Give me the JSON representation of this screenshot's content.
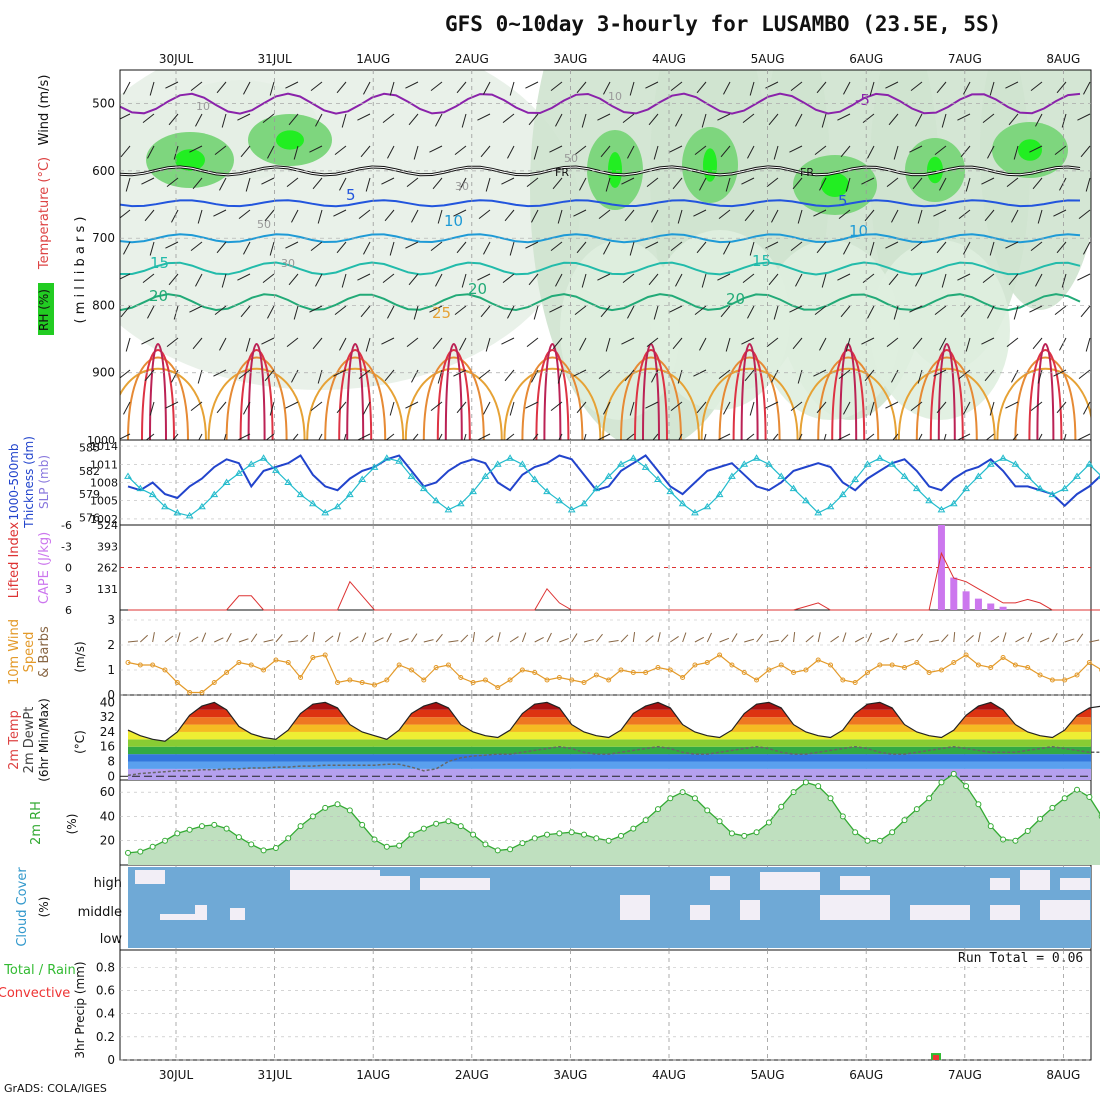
{
  "title": "GFS 0~10day 3-hourly for LUSAMBO (23.5E, 5S)",
  "credit": "GrADS: COLA/IGES",
  "run_total": "Run Total = 0.06",
  "dates": [
    "30JUL",
    "31JUL",
    "1AUG",
    "2AUG",
    "3AUG",
    "4AUG",
    "5AUG",
    "6AUG",
    "7AUG",
    "8AUG"
  ],
  "colors": {
    "rh_green": "#22cc22",
    "temp_cool": "#2255dd",
    "temp_warm": "#dd7700",
    "thick": "#2244cc",
    "slp": "#22bbcc",
    "li": "#dd3333",
    "cape": "#cc77ee",
    "wind": "#e39a2a",
    "dewpt": "#666666",
    "rh2": "#33aa33",
    "cloud": "#6fa9d6",
    "precip": "#33bb33"
  },
  "panels": {
    "upper": {
      "label_rh": "RH (%)",
      "label_temp": "Temperature (°C)",
      "label_wind": "Wind (m/s)",
      "label_p": "( m i l l i b a r s )"
    },
    "thickness": {
      "label_a": "1000-500mb",
      "label_b": "Thickness (dm)",
      "label_slp": "SLP (mb)"
    },
    "cape": {
      "label_li": "Lifted Index",
      "label_cape": "CAPE (J/kg)"
    },
    "wind10": {
      "label_a": "10m Wind",
      "label_b": "Speed",
      "label_c": "& Barbs",
      "label_unit": "(m/s)"
    },
    "temp2m": {
      "label_a": "2m Temp",
      "label_b": "2m DewPt",
      "label_c": "(6hr Min/Max)",
      "label_unit": "(°C)"
    },
    "rh2m": {
      "label": "2m RH",
      "label_unit": "(%)"
    },
    "cloud": {
      "label": "Cloud Cover",
      "label_unit": "(%)",
      "levels": [
        "high",
        "middle",
        "low"
      ]
    },
    "precip": {
      "label_a": "Total / Rain",
      "label_b": "Convective",
      "label_c": "3hr Precip (mm)"
    }
  },
  "chart_data": [
    {
      "type": "heatmap",
      "panel": "vertical-cross-section",
      "ylabel": "millibars",
      "y_ticks": [
        500,
        600,
        700,
        800,
        900,
        1000
      ],
      "ylim": [
        450,
        1000
      ],
      "contour_labels_temp": [
        "-5",
        "0",
        "FR",
        "5",
        "10",
        "15",
        "20",
        "25"
      ],
      "contour_labels_rh": [
        "10",
        "30",
        "50"
      ],
      "freezing_level_mb": 600
    },
    {
      "type": "line",
      "panel": "thickness-slp",
      "thickness_ticks": [
        576,
        579,
        582,
        585
      ],
      "slp_ticks": [
        1002,
        1005,
        1008,
        1011,
        1014
      ],
      "series": [
        {
          "name": "1000-500mb Thickness",
          "values": [
            580,
            579.5,
            580.5,
            579,
            578.5,
            580,
            581,
            582.5,
            583.5,
            583,
            580,
            582,
            582.5,
            583,
            584,
            581.5,
            580,
            579.5,
            581,
            582,
            582.5,
            583.5,
            584,
            582,
            580,
            580.5,
            582,
            583,
            583.5,
            583,
            580.5,
            579.5,
            581.5,
            582.5,
            583,
            584,
            583.5,
            581.5,
            579.5,
            580,
            582,
            583,
            584,
            582,
            580,
            579,
            580.5,
            582,
            582.5,
            583,
            581.5,
            580,
            579.5,
            580.5,
            582,
            582.5,
            583,
            582.5,
            580.5,
            579.5,
            581,
            582,
            583,
            583.5,
            582,
            580,
            579.5,
            581,
            582,
            582.5,
            583.5,
            582,
            580,
            580,
            579.5,
            579,
            577.5,
            579,
            580,
            581.5
          ]
        },
        {
          "name": "SLP",
          "values": [
            1009,
            1007,
            1006,
            1004,
            1003,
            1002.5,
            1004,
            1006,
            1008,
            1009.5,
            1011,
            1012,
            1010,
            1008,
            1006,
            1004.5,
            1003,
            1004,
            1006,
            1008.5,
            1010.5,
            1012,
            1011.5,
            1009,
            1007,
            1005,
            1003.5,
            1004.5,
            1006.5,
            1009,
            1011,
            1012,
            1011,
            1008.5,
            1006.5,
            1005,
            1003.5,
            1004.5,
            1007,
            1009,
            1011,
            1012,
            1010.5,
            1008.5,
            1006.5,
            1004.5,
            1003,
            1004,
            1006,
            1009,
            1011,
            1012,
            1011,
            1009,
            1007,
            1005,
            1003,
            1004,
            1006,
            1008.5,
            1011,
            1012,
            1011,
            1009,
            1007,
            1005,
            1003.5,
            1004.5,
            1007,
            1009,
            1011,
            1012,
            1011,
            1009,
            1007,
            1006,
            1007,
            1009,
            1011,
            1009,
            1006
          ]
        }
      ]
    },
    {
      "type": "bar",
      "panel": "cape-lifted-index",
      "cape_ticks": [
        131,
        262,
        393,
        524
      ],
      "li_ticks": [
        -6,
        -3,
        0,
        3,
        6
      ],
      "series": [
        {
          "name": "CAPE",
          "values": [
            0,
            0,
            0,
            0,
            0,
            0,
            0,
            0,
            0,
            0,
            0,
            0,
            0,
            0,
            0,
            0,
            0,
            0,
            0,
            0,
            0,
            0,
            0,
            0,
            0,
            0,
            0,
            0,
            0,
            0,
            0,
            0,
            0,
            0,
            0,
            0,
            0,
            0,
            0,
            0,
            0,
            0,
            0,
            0,
            0,
            0,
            0,
            0,
            0,
            0,
            0,
            0,
            0,
            0,
            0,
            0,
            0,
            0,
            0,
            0,
            0,
            0,
            0,
            0,
            0,
            0,
            524,
            200,
            115,
            70,
            40,
            20,
            0,
            0,
            0,
            0,
            0,
            0,
            0,
            0,
            0,
            0
          ]
        },
        {
          "name": "Lifted Index",
          "values": [
            6,
            6,
            6,
            6,
            6,
            6,
            6,
            6,
            6,
            4,
            4,
            6,
            6,
            6,
            6,
            6,
            6,
            6,
            2,
            4,
            6,
            6,
            6,
            6,
            6,
            6,
            6,
            6,
            6,
            6,
            6,
            6,
            6,
            6,
            3,
            5,
            6,
            6,
            6,
            6,
            6,
            6,
            6,
            6,
            6,
            6,
            6,
            6,
            6,
            6,
            6,
            6,
            6,
            6,
            6,
            5.5,
            5,
            6,
            6,
            6,
            6,
            6,
            6,
            6,
            6,
            6,
            -2,
            1.5,
            2,
            3,
            4,
            5,
            5,
            4.5,
            5,
            6,
            6,
            6,
            6,
            6,
            6
          ]
        }
      ]
    },
    {
      "type": "line",
      "panel": "10m-wind",
      "y_ticks": [
        0,
        1,
        2,
        3
      ],
      "series": [
        {
          "name": "10m Wind Speed",
          "values": [
            1.3,
            1.2,
            1.2,
            1.0,
            0.5,
            0.1,
            0.1,
            0.5,
            0.9,
            1.3,
            1.2,
            1.0,
            1.4,
            1.3,
            0.7,
            1.5,
            1.6,
            0.5,
            0.6,
            0.5,
            0.4,
            0.6,
            1.2,
            1.0,
            0.6,
            1.1,
            1.2,
            0.7,
            0.5,
            0.6,
            0.3,
            0.6,
            1.0,
            0.9,
            0.6,
            0.7,
            0.6,
            0.5,
            0.8,
            0.6,
            1.0,
            0.9,
            0.9,
            1.1,
            1.0,
            0.7,
            1.2,
            1.3,
            1.6,
            1.2,
            0.9,
            0.6,
            1.0,
            1.2,
            0.9,
            1.0,
            1.4,
            1.2,
            0.6,
            0.5,
            0.9,
            1.2,
            1.2,
            1.1,
            1.3,
            0.9,
            1.0,
            1.3,
            1.6,
            1.2,
            1.1,
            1.5,
            1.2,
            1.1,
            0.8,
            0.6,
            0.6,
            0.8,
            1.3,
            1.0,
            0.1
          ]
        }
      ]
    },
    {
      "type": "area",
      "panel": "2m-temp-dewpt",
      "y_ticks": [
        0,
        8,
        16,
        24,
        32,
        40
      ],
      "series": [
        {
          "name": "2m Temp",
          "values": [
            25,
            22,
            20,
            19,
            24,
            33,
            38,
            40,
            36,
            27,
            23,
            21,
            20,
            25,
            34,
            39,
            40,
            37,
            28,
            24,
            22,
            20,
            25,
            34,
            38,
            40,
            37,
            28,
            24,
            22,
            21,
            25,
            34,
            39,
            40,
            37,
            28,
            24,
            22,
            21,
            25,
            34,
            38,
            40,
            37,
            28,
            24,
            22,
            21,
            25,
            34,
            39,
            40,
            37,
            28,
            24,
            22,
            21,
            25,
            34,
            39,
            40,
            37,
            28,
            24,
            22,
            21,
            25,
            33,
            38,
            40,
            36,
            28,
            24,
            22,
            21,
            25,
            33,
            37,
            38,
            33
          ]
        },
        {
          "name": "2m DewPt",
          "values": [
            0.5,
            1.5,
            2,
            2.5,
            3,
            3,
            3.5,
            3.5,
            4,
            4,
            4.5,
            4.5,
            5,
            5,
            5.5,
            5.5,
            6,
            6,
            6,
            6,
            6,
            6.5,
            6.5,
            5,
            3,
            4,
            8,
            10,
            11,
            11.5,
            12,
            12,
            13,
            14,
            15,
            16,
            15,
            13,
            12,
            12,
            13,
            14,
            15,
            16,
            15,
            13,
            12,
            12,
            13,
            14,
            15,
            16,
            15,
            13,
            12,
            12,
            13,
            14,
            15,
            16,
            15,
            13,
            12,
            12,
            13,
            14,
            15,
            16,
            15,
            14,
            13,
            13,
            13,
            14,
            15,
            16,
            15,
            14,
            13,
            13,
            14
          ]
        }
      ]
    },
    {
      "type": "area",
      "panel": "2m-rh",
      "y_ticks": [
        20,
        40,
        60
      ],
      "series": [
        {
          "name": "2m RH",
          "values": [
            10,
            11,
            15,
            20,
            26,
            29,
            32,
            33,
            30,
            23,
            17,
            12,
            14,
            22,
            32,
            40,
            47,
            50,
            45,
            33,
            21,
            15,
            16,
            25,
            30,
            34,
            36,
            32,
            25,
            17,
            12,
            13,
            18,
            22,
            25,
            26,
            27,
            25,
            22,
            20,
            24,
            30,
            37,
            46,
            55,
            60,
            55,
            45,
            36,
            26,
            24,
            27,
            35,
            48,
            60,
            68,
            65,
            55,
            40,
            27,
            20,
            20,
            27,
            37,
            46,
            55,
            68,
            75,
            65,
            50,
            32,
            21,
            20,
            28,
            38,
            47,
            55,
            62,
            56,
            40,
            18
          ]
        }
      ]
    },
    {
      "type": "bar",
      "panel": "cloud-cover",
      "categories": [
        "high",
        "middle",
        "low"
      ]
    },
    {
      "type": "bar",
      "panel": "3hr-precip",
      "y_ticks": [
        0,
        0.2,
        0.4,
        0.6,
        0.8
      ],
      "series": [
        {
          "name": "Total / Rain",
          "values": [
            0.06
          ]
        }
      ]
    }
  ]
}
